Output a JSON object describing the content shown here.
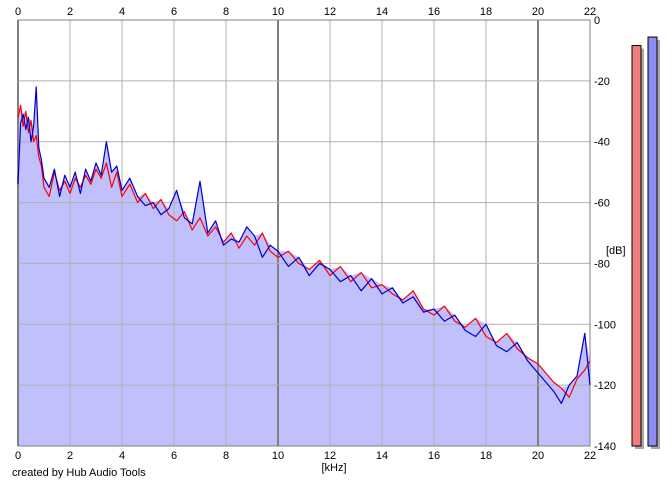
{
  "footer": {
    "credit": "created by Hub Audio Tools"
  },
  "colors": {
    "background": "#ffffff",
    "fill": "#c0c0fc",
    "grid_minor": "#b0b0b0",
    "grid_major": "#808080",
    "left_channel": "#ff0000",
    "right_channel": "#0000cc",
    "meter_left": "#f07c7c",
    "meter_right": "#8c8cf4",
    "meter_shadow": "#a8a8a8"
  },
  "chart_data": {
    "type": "line",
    "title": "",
    "xlabel": "[kHz]",
    "ylabel": "[dB]",
    "xlim": [
      0,
      22
    ],
    "ylim": [
      -140,
      0
    ],
    "x_ticks": [
      "0",
      "2",
      "4",
      "6",
      "8",
      "10",
      "12",
      "14",
      "16",
      "18",
      "20",
      "22"
    ],
    "x_major_ticks": [
      0,
      10,
      20
    ],
    "y_ticks": [
      "0",
      "-20",
      "-40",
      "-60",
      "-80",
      "-100",
      "-120",
      "-140"
    ],
    "grid": true,
    "series": [
      {
        "channel": "left",
        "color": "#ff0000",
        "x": [
          0,
          0.1,
          0.2,
          0.3,
          0.4,
          0.5,
          0.6,
          0.7,
          0.8,
          0.9,
          1.0,
          1.2,
          1.4,
          1.6,
          1.8,
          2.0,
          2.2,
          2.4,
          2.6,
          2.8,
          3.0,
          3.2,
          3.4,
          3.6,
          3.8,
          4.0,
          4.3,
          4.6,
          4.9,
          5.2,
          5.5,
          5.8,
          6.1,
          6.4,
          6.7,
          7.0,
          7.3,
          7.6,
          7.9,
          8.2,
          8.5,
          8.8,
          9.1,
          9.4,
          9.7,
          10.0,
          10.4,
          10.8,
          11.2,
          11.6,
          12.0,
          12.4,
          12.8,
          13.2,
          13.6,
          14.0,
          14.4,
          14.8,
          15.2,
          15.6,
          16.0,
          16.4,
          16.8,
          17.2,
          17.6,
          18.0,
          18.4,
          18.8,
          19.2,
          19.6,
          20.0,
          20.3,
          20.6,
          20.9,
          21.2,
          21.5,
          21.8,
          22.0
        ],
        "y": [
          -32,
          -28,
          -35,
          -30,
          -37,
          -33,
          -40,
          -38,
          -45,
          -48,
          -55,
          -58,
          -50,
          -56,
          -53,
          -57,
          -52,
          -55,
          -51,
          -54,
          -49,
          -52,
          -47,
          -55,
          -50,
          -58,
          -54,
          -60,
          -57,
          -62,
          -59,
          -64,
          -66,
          -63,
          -69,
          -65,
          -71,
          -68,
          -73,
          -70,
          -75,
          -71,
          -74,
          -70,
          -76,
          -78,
          -76,
          -80,
          -82,
          -79,
          -84,
          -81,
          -86,
          -83,
          -88,
          -87,
          -90,
          -92,
          -89,
          -95,
          -97,
          -94,
          -99,
          -101,
          -98,
          -104,
          -106,
          -103,
          -108,
          -111,
          -113,
          -116,
          -119,
          -121,
          -124,
          -118,
          -115,
          -112
        ]
      },
      {
        "channel": "right",
        "color": "#0000cc",
        "x": [
          0,
          0.1,
          0.2,
          0.3,
          0.4,
          0.5,
          0.6,
          0.7,
          0.8,
          0.9,
          1.0,
          1.2,
          1.4,
          1.6,
          1.8,
          2.0,
          2.2,
          2.4,
          2.6,
          2.8,
          3.0,
          3.2,
          3.4,
          3.6,
          3.8,
          4.0,
          4.3,
          4.6,
          4.9,
          5.2,
          5.5,
          5.8,
          6.1,
          6.4,
          6.7,
          7.0,
          7.3,
          7.6,
          7.9,
          8.2,
          8.5,
          8.8,
          9.1,
          9.4,
          9.7,
          10.0,
          10.4,
          10.8,
          11.2,
          11.6,
          12.0,
          12.4,
          12.8,
          13.2,
          13.6,
          14.0,
          14.4,
          14.8,
          15.2,
          15.6,
          16.0,
          16.4,
          16.8,
          17.2,
          17.6,
          18.0,
          18.4,
          18.8,
          19.2,
          19.6,
          20.0,
          20.3,
          20.6,
          20.9,
          21.2,
          21.5,
          21.8,
          22.0
        ],
        "y": [
          -54,
          -34,
          -31,
          -36,
          -32,
          -40,
          -35,
          -22,
          -42,
          -46,
          -52,
          -55,
          -49,
          -58,
          -51,
          -55,
          -50,
          -57,
          -49,
          -53,
          -47,
          -51,
          -40,
          -50,
          -48,
          -56,
          -52,
          -58,
          -61,
          -60,
          -64,
          -62,
          -56,
          -65,
          -67,
          -53,
          -70,
          -66,
          -74,
          -72,
          -73,
          -68,
          -71,
          -78,
          -74,
          -76,
          -81,
          -78,
          -84,
          -80,
          -82,
          -86,
          -84,
          -89,
          -85,
          -90,
          -88,
          -93,
          -91,
          -96,
          -95,
          -99,
          -97,
          -102,
          -104,
          -100,
          -107,
          -109,
          -106,
          -112,
          -116,
          -119,
          -122,
          -126,
          -120,
          -117,
          -103,
          -120
        ]
      }
    ],
    "meters": [
      {
        "channel": "left",
        "level": 0.94,
        "color": "#f07c7c"
      },
      {
        "channel": "right",
        "level": 0.96,
        "color": "#8c8cf4"
      }
    ]
  }
}
